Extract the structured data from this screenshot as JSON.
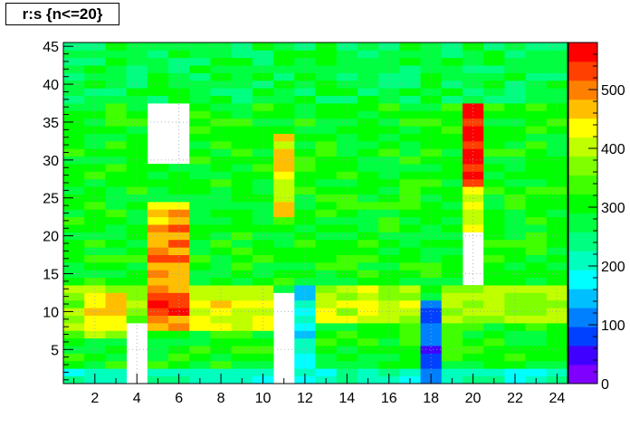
{
  "title": "r:s {n<=20}",
  "chart_data": {
    "type": "heatmap",
    "title": "r:s {n<=20}",
    "xlabel": "",
    "ylabel": "",
    "x_bins": 24,
    "y_bins": 45,
    "x_range": [
      0.5,
      24.5
    ],
    "y_range": [
      0.5,
      45.5
    ],
    "x_ticks": [
      2,
      4,
      6,
      8,
      10,
      12,
      14,
      16,
      18,
      20,
      22,
      24
    ],
    "y_ticks": [
      5,
      10,
      15,
      20,
      25,
      30,
      35,
      40,
      45
    ],
    "z_range": [
      0,
      580
    ],
    "z_ticks": [
      0,
      100,
      200,
      300,
      400,
      500
    ],
    "colorbar_colors": [
      "#7f00ff",
      "#4000ff",
      "#0040ff",
      "#0080ff",
      "#00bfff",
      "#00ffff",
      "#00ffbf",
      "#00ff80",
      "#00ff40",
      "#00ff00",
      "#40ff00",
      "#80ff00",
      "#bfff00",
      "#ffff00",
      "#ffbf00",
      "#ff8000",
      "#ff4000",
      "#ff0000"
    ],
    "grid": true,
    "empty_bins": {
      "note_visible": false
    },
    "baseline_value": 300,
    "regions": [
      {
        "x": [
          1,
          24
        ],
        "y": [
          1,
          2
        ],
        "value": 210
      },
      {
        "x": [
          1,
          24
        ],
        "y": [
          3,
          6
        ],
        "value": 300
      },
      {
        "x": [
          1,
          4
        ],
        "y": [
          7,
          13
        ],
        "value": 380
      },
      {
        "x": [
          2,
          3
        ],
        "y": [
          8,
          12
        ],
        "value": 440
      },
      {
        "x": [
          5,
          6
        ],
        "y": [
          8,
          13
        ],
        "value": 490
      },
      {
        "x": [
          5,
          6
        ],
        "y": [
          10,
          12
        ],
        "value": 540
      },
      {
        "x": [
          7,
          10
        ],
        "y": [
          8,
          13
        ],
        "value": 420
      },
      {
        "x": [
          11,
          11
        ],
        "y": [
          1,
          12
        ],
        "value": null
      },
      {
        "x": [
          12,
          12
        ],
        "y": [
          1,
          13
        ],
        "value": 180
      },
      {
        "x": [
          13,
          17
        ],
        "y": [
          9,
          13
        ],
        "value": 400
      },
      {
        "x": [
          18,
          18
        ],
        "y": [
          1,
          11
        ],
        "value": 90
      },
      {
        "x": [
          19,
          24
        ],
        "y": [
          9,
          13
        ],
        "value": 390
      },
      {
        "x": [
          4,
          4
        ],
        "y": [
          1,
          8
        ],
        "value": null
      },
      {
        "x": [
          5,
          6
        ],
        "y": [
          14,
          24
        ],
        "value": 470
      },
      {
        "x": [
          5,
          6
        ],
        "y": [
          17,
          21
        ],
        "value": 500
      },
      {
        "x": [
          5,
          6
        ],
        "y": [
          30,
          37
        ],
        "value": null
      },
      {
        "x": [
          5,
          6
        ],
        "y": [
          38,
          45
        ],
        "value": 80
      },
      {
        "x": [
          11,
          11
        ],
        "y": [
          23,
          33
        ],
        "value": 440
      },
      {
        "x": [
          11,
          11
        ],
        "y": [
          39,
          45
        ],
        "value": null
      },
      {
        "x": [
          20,
          20
        ],
        "y": [
          14,
          20
        ],
        "value": null
      },
      {
        "x": [
          20,
          20
        ],
        "y": [
          21,
          26
        ],
        "value": 430
      },
      {
        "x": [
          20,
          20
        ],
        "y": [
          27,
          37
        ],
        "value": 560
      },
      {
        "x": [
          1,
          24
        ],
        "y": [
          38,
          45
        ],
        "value": 270
      }
    ]
  }
}
